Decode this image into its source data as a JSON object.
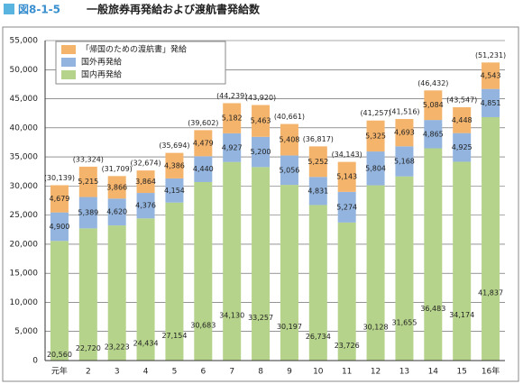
{
  "chart_data": {
    "type": "stacked_bar",
    "figure_label": "図8-1-5",
    "title": "一般旅券再発給および渡航書発給数",
    "categories": [
      "元年",
      "2",
      "3",
      "4",
      "5",
      "6",
      "7",
      "8",
      "9",
      "10",
      "11",
      "12",
      "13",
      "14",
      "15",
      "16年"
    ],
    "series": [
      {
        "name": "国内再発給",
        "color": "#b5d38a",
        "values": [
          20560,
          22720,
          23223,
          24434,
          27154,
          30683,
          34130,
          33257,
          30197,
          26734,
          23726,
          30128,
          31655,
          36483,
          34174,
          41837
        ],
        "value_labels": [
          "20,560",
          "22,720",
          "23,223",
          "24,434",
          "27,154",
          "30,683",
          "34,130",
          "33,257",
          "30,197",
          "26,734",
          "23,726",
          "30,128",
          "31,655",
          "36,483",
          "34,174",
          "41,837"
        ]
      },
      {
        "name": "国外再発給",
        "color": "#92b4de",
        "values": [
          4900,
          5389,
          4620,
          4376,
          4154,
          4440,
          4927,
          5200,
          5056,
          4831,
          5274,
          5804,
          5168,
          4865,
          4925,
          4851
        ],
        "value_labels": [
          "4,900",
          "5,389",
          "4,620",
          "4,376",
          "4,154",
          "4,440",
          "4,927",
          "5,200",
          "5,056",
          "4,831",
          "5,274",
          "5,804",
          "5,168",
          "4,865",
          "4,925",
          "4,851"
        ]
      },
      {
        "name": "「帰国のための渡航書」発給",
        "color": "#f5b46c",
        "values": [
          4679,
          5215,
          3866,
          3864,
          4386,
          4479,
          5182,
          5463,
          5408,
          5252,
          5143,
          5325,
          4693,
          5084,
          4448,
          4543
        ],
        "value_labels": [
          "4,679",
          "5,215",
          "3,866",
          "3,864",
          "4,386",
          "4,479",
          "5,182",
          "5,463",
          "5,408",
          "5,252",
          "5,143",
          "5,325",
          "4,693",
          "5,084",
          "4,448",
          "4,543"
        ]
      }
    ],
    "totals": {
      "values": [
        30139,
        33324,
        31709,
        32674,
        35694,
        39602,
        44239,
        43920,
        40661,
        36817,
        34143,
        41257,
        41516,
        46432,
        43547,
        51231
      ],
      "value_labels": [
        "(30,139)",
        "(33,324)",
        "(31,709)",
        "(32,674)",
        "(35,694)",
        "(39,602)",
        "(44,239)",
        "(43,920)",
        "(40,661)",
        "(36,817)",
        "(34,143)",
        "(41,257)",
        "(41,516)",
        "(46,432)",
        "(43,547)",
        "(51,231)"
      ]
    },
    "ylim": [
      0,
      55000
    ],
    "yticks": [
      0,
      {
        "value": 5000,
        "label": "5,000"
      },
      {
        "value": 10000,
        "label": "10,000"
      },
      {
        "value": 15000,
        "label": "15,000"
      },
      {
        "value": 20000,
        "label": "20,000"
      },
      {
        "value": 25000,
        "label": "25,000"
      },
      {
        "value": 30000,
        "label": "30,000"
      },
      {
        "value": 35000,
        "label": "35,000"
      },
      {
        "value": 40000,
        "label": "40,000"
      },
      {
        "value": 45000,
        "label": "45,000"
      },
      {
        "value": 50000,
        "label": "50,000"
      },
      {
        "value": 55000,
        "label": "55,000"
      }
    ],
    "grid": true
  }
}
